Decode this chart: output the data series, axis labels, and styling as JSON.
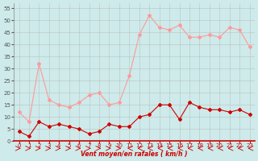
{
  "x": [
    0,
    1,
    2,
    3,
    4,
    5,
    6,
    7,
    8,
    9,
    10,
    11,
    12,
    13,
    14,
    15,
    16,
    17,
    18,
    19,
    20,
    21,
    22,
    23
  ],
  "rafales": [
    12,
    8,
    32,
    17,
    15,
    14,
    16,
    19,
    20,
    15,
    16,
    27,
    44,
    52,
    47,
    46,
    48,
    43,
    43,
    44,
    43,
    47,
    46,
    39
  ],
  "moyen": [
    4,
    2,
    8,
    6,
    7,
    6,
    5,
    3,
    4,
    7,
    6,
    6,
    10,
    11,
    15,
    15,
    9,
    16,
    14,
    13,
    13,
    12,
    13,
    11
  ],
  "ylim": [
    0,
    57
  ],
  "xlim": [
    -0.5,
    23.5
  ],
  "yticks": [
    0,
    5,
    10,
    15,
    20,
    25,
    30,
    35,
    40,
    45,
    50,
    55
  ],
  "xticks": [
    0,
    1,
    2,
    3,
    4,
    5,
    6,
    7,
    8,
    9,
    10,
    11,
    12,
    13,
    14,
    15,
    16,
    17,
    18,
    19,
    20,
    21,
    22,
    23
  ],
  "xlabel": "Vent moyen/en rafales ( km/h )",
  "bg_color": "#ceeaea",
  "grid_color": "#aaaaaa",
  "line_color_rafales": "#ff9999",
  "line_color_moyen": "#cc0000",
  "marker_color_rafales": "#ff9999",
  "marker_color_moyen": "#cc0000",
  "arrow_dirs": [
    1,
    1,
    1,
    1,
    1,
    1,
    1,
    1,
    1,
    1,
    1,
    -1,
    -1,
    -1,
    -1,
    -1,
    -1,
    -1,
    -1,
    -1,
    -1,
    -1,
    -1,
    -1
  ]
}
